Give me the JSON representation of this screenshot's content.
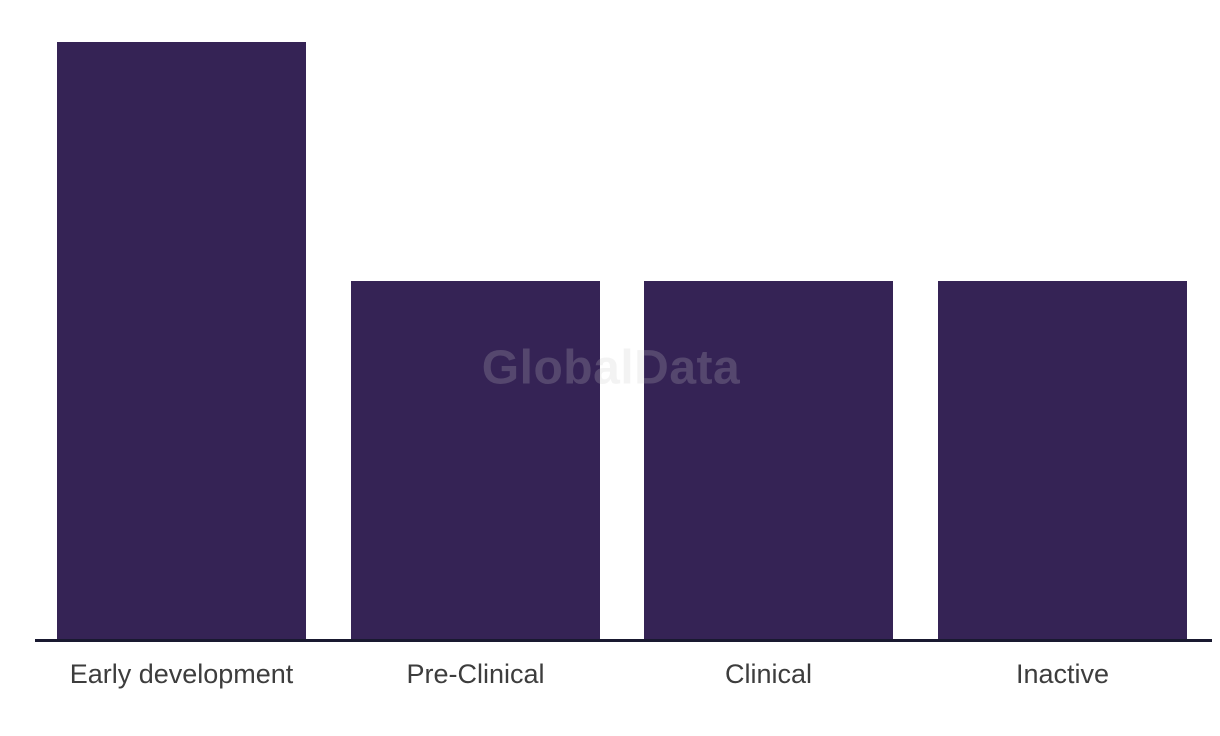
{
  "watermark": {
    "text": "GlobalData"
  },
  "chart_data": {
    "type": "bar",
    "categories": [
      "Early development",
      "Pre-Clinical",
      "Clinical",
      "Inactive"
    ],
    "values": [
      5,
      3,
      3,
      3
    ],
    "values_note": "No y-axis, ticks or data labels are visible; values estimated from relative bar heights (ratio 5:3:3:3)",
    "title": "",
    "xlabel": "",
    "ylabel": "",
    "ylim": [
      0,
      5
    ],
    "grid": false,
    "legend": "none",
    "orientation": "vertical",
    "colors": {
      "bar": "#352355",
      "axis_line": "#191930",
      "tick_label": "#3d3d3d",
      "background": "#ffffff",
      "watermark_rgba": "rgba(200,200,200,0.22)"
    }
  }
}
